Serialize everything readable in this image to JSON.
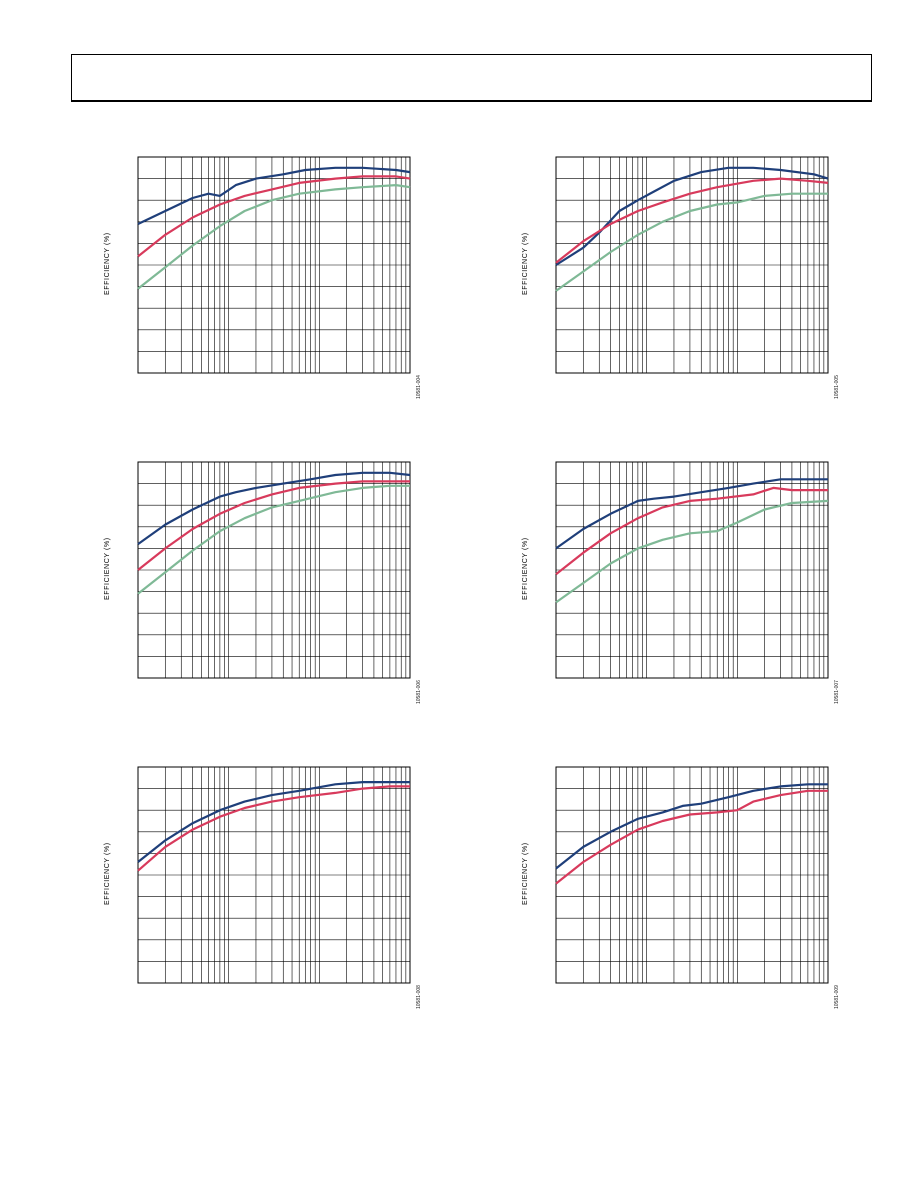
{
  "page": {
    "header_title": "",
    "colors": {
      "series_a": "#1f3f7a",
      "series_b": "#d83a5c",
      "series_c": "#7fb996",
      "grid": "#000000"
    }
  },
  "chart_data": [
    {
      "type": "line",
      "fig_id": "10581-004",
      "ylabel": "EFFICIENCY (%)",
      "xscale": "log",
      "xlim": [
        1,
        1000
      ],
      "ylim": [
        0,
        10
      ],
      "series": [
        {
          "color": "#1f3f7a",
          "x": [
            1,
            2,
            4,
            6,
            8,
            12,
            20,
            40,
            70,
            150,
            300,
            700,
            1000
          ],
          "y": [
            6.9,
            7.5,
            8.1,
            8.3,
            8.2,
            8.7,
            9.0,
            9.2,
            9.4,
            9.5,
            9.5,
            9.4,
            9.3
          ]
        },
        {
          "color": "#d83a5c",
          "x": [
            1,
            2,
            4,
            8,
            15,
            30,
            60,
            150,
            300,
            700,
            1000
          ],
          "y": [
            5.4,
            6.4,
            7.2,
            7.8,
            8.2,
            8.5,
            8.8,
            9.0,
            9.1,
            9.1,
            9.0
          ]
        },
        {
          "color": "#7fb996",
          "x": [
            1,
            2,
            4,
            8,
            15,
            30,
            60,
            150,
            300,
            700,
            1000
          ],
          "y": [
            3.9,
            4.9,
            5.9,
            6.8,
            7.5,
            8.0,
            8.3,
            8.5,
            8.6,
            8.7,
            8.6
          ]
        }
      ]
    },
    {
      "type": "line",
      "fig_id": "10581-005",
      "ylabel": "EFFICIENCY (%)",
      "xscale": "log",
      "xlim": [
        1,
        1000
      ],
      "ylim": [
        0,
        10
      ],
      "series": [
        {
          "color": "#1f3f7a",
          "x": [
            1,
            2,
            3,
            5,
            8,
            12,
            20,
            40,
            80,
            150,
            300,
            700,
            1000
          ],
          "y": [
            5.0,
            5.8,
            6.5,
            7.5,
            8.0,
            8.4,
            8.9,
            9.3,
            9.5,
            9.5,
            9.4,
            9.2,
            9.0
          ]
        },
        {
          "color": "#d83a5c",
          "x": [
            1,
            2,
            4,
            8,
            15,
            30,
            60,
            150,
            300,
            600,
            1000
          ],
          "y": [
            5.1,
            6.1,
            6.9,
            7.5,
            7.9,
            8.3,
            8.6,
            8.9,
            9.0,
            8.9,
            8.8
          ]
        },
        {
          "color": "#7fb996",
          "x": [
            1,
            2,
            4,
            8,
            15,
            30,
            60,
            100,
            200,
            400,
            1000
          ],
          "y": [
            3.8,
            4.7,
            5.6,
            6.4,
            7.0,
            7.5,
            7.8,
            7.9,
            8.2,
            8.3,
            8.3
          ]
        }
      ]
    },
    {
      "type": "line",
      "fig_id": "10581-006",
      "ylabel": "EFFICIENCY (%)",
      "xscale": "log",
      "xlim": [
        1,
        1000
      ],
      "ylim": [
        0,
        10
      ],
      "series": [
        {
          "color": "#1f3f7a",
          "x": [
            1,
            2,
            4,
            8,
            12,
            20,
            40,
            80,
            150,
            300,
            600,
            1000
          ],
          "y": [
            6.2,
            7.1,
            7.8,
            8.4,
            8.6,
            8.8,
            9.0,
            9.2,
            9.4,
            9.5,
            9.5,
            9.4
          ]
        },
        {
          "color": "#d83a5c",
          "x": [
            1,
            2,
            4,
            8,
            15,
            30,
            60,
            150,
            300,
            600,
            1000
          ],
          "y": [
            5.0,
            6.0,
            6.9,
            7.6,
            8.1,
            8.5,
            8.8,
            9.0,
            9.1,
            9.1,
            9.1
          ]
        },
        {
          "color": "#7fb996",
          "x": [
            1,
            2,
            4,
            8,
            15,
            30,
            60,
            150,
            300,
            600,
            1000
          ],
          "y": [
            3.9,
            4.9,
            5.9,
            6.8,
            7.4,
            7.9,
            8.2,
            8.6,
            8.8,
            8.9,
            8.9
          ]
        }
      ]
    },
    {
      "type": "line",
      "fig_id": "10581-007",
      "ylabel": "EFFICIENCY (%)",
      "xscale": "log",
      "xlim": [
        1,
        1000
      ],
      "ylim": [
        0,
        10
      ],
      "series": [
        {
          "color": "#1f3f7a",
          "x": [
            1,
            2,
            4,
            8,
            12,
            20,
            40,
            80,
            150,
            300,
            600,
            1000
          ],
          "y": [
            6.0,
            6.9,
            7.6,
            8.2,
            8.3,
            8.4,
            8.6,
            8.8,
            9.0,
            9.2,
            9.2,
            9.2
          ]
        },
        {
          "color": "#d83a5c",
          "x": [
            1,
            2,
            4,
            8,
            15,
            30,
            60,
            150,
            250,
            400,
            1000
          ],
          "y": [
            4.8,
            5.8,
            6.7,
            7.4,
            7.9,
            8.2,
            8.3,
            8.5,
            8.8,
            8.7,
            8.7
          ]
        },
        {
          "color": "#7fb996",
          "x": [
            1,
            2,
            4,
            8,
            15,
            30,
            60,
            100,
            200,
            400,
            1000
          ],
          "y": [
            3.5,
            4.4,
            5.3,
            6.0,
            6.4,
            6.7,
            6.8,
            7.2,
            7.8,
            8.1,
            8.2
          ]
        }
      ]
    },
    {
      "type": "line",
      "fig_id": "10581-008",
      "ylabel": "EFFICIENCY (%)",
      "xscale": "log",
      "xlim": [
        1,
        1000
      ],
      "ylim": [
        0,
        10
      ],
      "series": [
        {
          "color": "#1f3f7a",
          "x": [
            1,
            2,
            4,
            8,
            15,
            30,
            60,
            150,
            300,
            600,
            1000
          ],
          "y": [
            5.6,
            6.6,
            7.4,
            8.0,
            8.4,
            8.7,
            8.9,
            9.2,
            9.3,
            9.3,
            9.3
          ]
        },
        {
          "color": "#d83a5c",
          "x": [
            1,
            2,
            4,
            8,
            15,
            30,
            60,
            150,
            300,
            600,
            1000
          ],
          "y": [
            5.2,
            6.3,
            7.1,
            7.7,
            8.1,
            8.4,
            8.6,
            8.8,
            9.0,
            9.1,
            9.1
          ]
        }
      ]
    },
    {
      "type": "line",
      "fig_id": "10581-009",
      "ylabel": "EFFICIENCY (%)",
      "xscale": "log",
      "xlim": [
        1,
        1000
      ],
      "ylim": [
        0,
        10
      ],
      "series": [
        {
          "color": "#1f3f7a",
          "x": [
            1,
            2,
            4,
            8,
            15,
            25,
            40,
            80,
            150,
            300,
            600,
            1000
          ],
          "y": [
            5.3,
            6.3,
            7.0,
            7.6,
            7.9,
            8.2,
            8.3,
            8.6,
            8.9,
            9.1,
            9.2,
            9.2
          ]
        },
        {
          "color": "#d83a5c",
          "x": [
            1,
            2,
            4,
            8,
            15,
            30,
            60,
            100,
            150,
            300,
            600,
            1000
          ],
          "y": [
            4.6,
            5.6,
            6.4,
            7.1,
            7.5,
            7.8,
            7.9,
            8.0,
            8.4,
            8.7,
            8.9,
            8.9
          ]
        }
      ]
    }
  ]
}
